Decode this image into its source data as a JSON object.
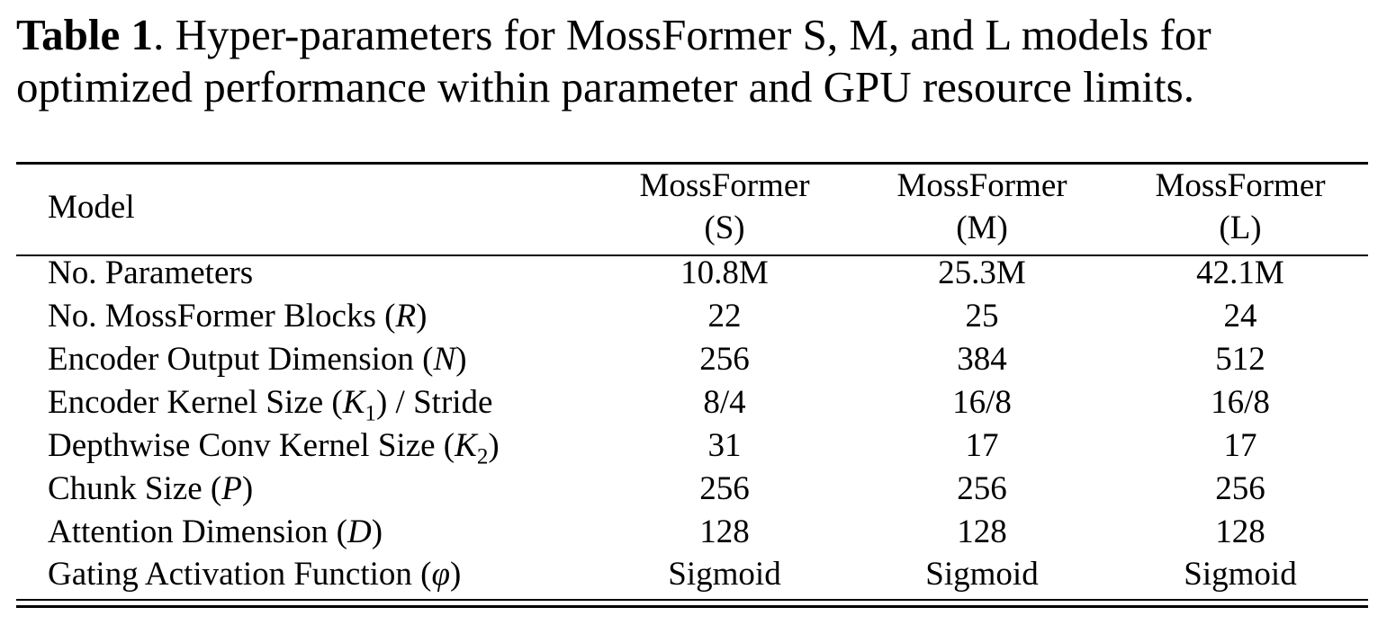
{
  "caption": {
    "label": "Table 1",
    "text": ". Hyper-parameters for MossFormer S, M, and L models for optimized performance within parameter and GPU resource limits."
  },
  "table": {
    "header": {
      "row_label": "Model",
      "columns": [
        {
          "name": "MossFormer",
          "size": "(S)"
        },
        {
          "name": "MossFormer",
          "size": "(M)"
        },
        {
          "name": "MossFormer",
          "size": "(L)"
        }
      ]
    },
    "rows": [
      {
        "label": "No. Parameters",
        "values": [
          "10.8M",
          "25.3M",
          "42.1M"
        ]
      },
      {
        "label": "No. MossFormer Blocks (",
        "symbol": "R",
        "suffix": ")",
        "values": [
          "22",
          "25",
          "24"
        ]
      },
      {
        "label": "Encoder Output Dimension (",
        "symbol": "N",
        "suffix": ")",
        "values": [
          "256",
          "384",
          "512"
        ]
      },
      {
        "label": "Encoder Kernel Size (",
        "symbol": "K",
        "subscript": "1",
        "suffix": ") / Stride",
        "values": [
          "8/4",
          "16/8",
          "16/8"
        ]
      },
      {
        "label": "Depthwise Conv Kernel Size (",
        "symbol": "K",
        "subscript": "2",
        "suffix": ")",
        "values": [
          "31",
          "17",
          "17"
        ]
      },
      {
        "label": "Chunk Size (",
        "symbol": "P",
        "suffix": ")",
        "values": [
          "256",
          "256",
          "256"
        ]
      },
      {
        "label": "Attention Dimension (",
        "symbol": "D",
        "suffix": ")",
        "values": [
          "128",
          "128",
          "128"
        ]
      },
      {
        "label": "Gating Activation Function (",
        "symbol": "φ",
        "suffix": ")",
        "values": [
          "Sigmoid",
          "Sigmoid",
          "Sigmoid"
        ]
      }
    ]
  }
}
